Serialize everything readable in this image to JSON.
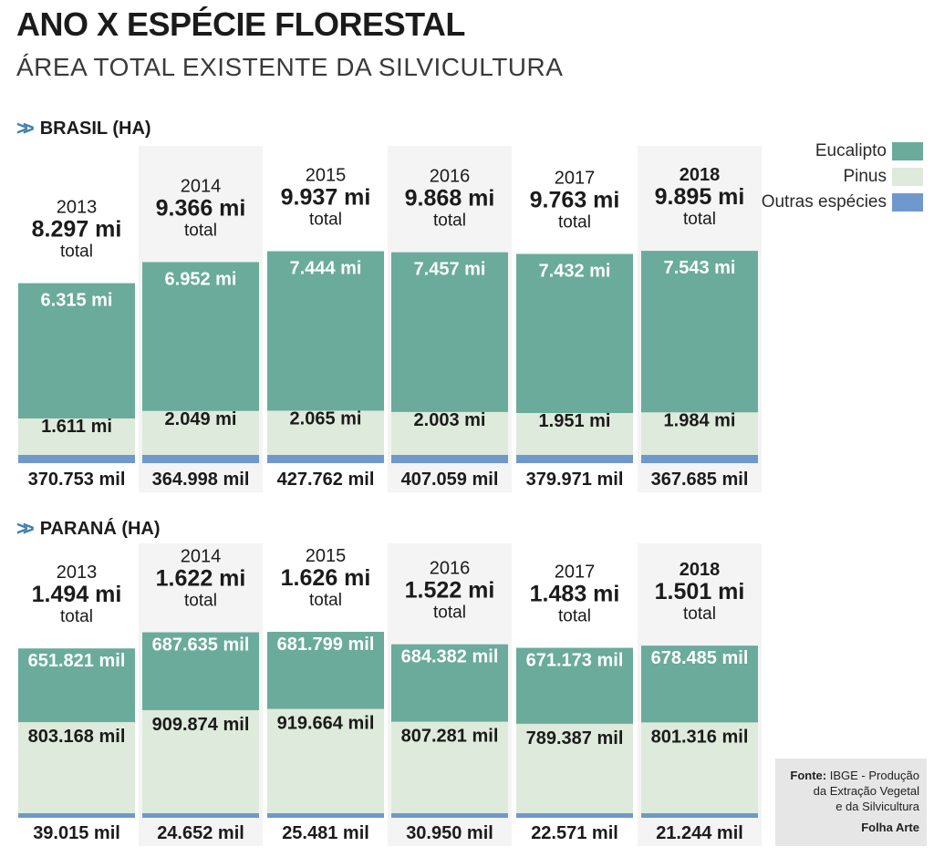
{
  "header": {
    "title": "ANO X ESPÉCIE FLORESTAL",
    "subtitle": "ÁREA TOTAL EXISTENTE DA SILVICULTURA"
  },
  "legend": {
    "eucalipto": "Eucalipto",
    "pinus": "Pinus",
    "outras": "Outras espécies"
  },
  "colors": {
    "eucalipto": "#6aab9b",
    "pinus": "#deeadb",
    "outras": "#6f98cc",
    "column_bg": "#f4f4f4",
    "chevron": "#3f7fb0"
  },
  "total_word": "total",
  "source": {
    "label": "Fonte:",
    "text_line1": "IBGE - Produção",
    "text_line2": "da Extração Vegetal",
    "text_line3": "e da Silvicultura",
    "credit": "Folha Arte"
  },
  "chart_data": [
    {
      "type": "bar",
      "stacked": true,
      "section_title": "BRASIL (HA)",
      "categories": [
        "2013",
        "2014",
        "2015",
        "2016",
        "2017",
        "2018"
      ],
      "totals": [
        8297000,
        9366000,
        9937000,
        9868000,
        9763000,
        9895000
      ],
      "total_labels": [
        "8.297 mi",
        "9.366 mi",
        "9.937 mi",
        "9.868 mi",
        "9.763 mi",
        "9.895 mi"
      ],
      "series": [
        {
          "name": "Eucalipto",
          "values": [
            6315000,
            6952000,
            7444000,
            7457000,
            7432000,
            7543000
          ],
          "labels": [
            "6.315 mi",
            "6.952 mi",
            "7.444 mi",
            "7.457 mi",
            "7.432 mi",
            "7.543 mi"
          ]
        },
        {
          "name": "Pinus",
          "values": [
            1611000,
            2049000,
            2065000,
            2003000,
            1951000,
            1984000
          ],
          "labels": [
            "1.611 mi",
            "2.049 mi",
            "2.065 mi",
            "2.003 mi",
            "1.951 mi",
            "1.984 mi"
          ]
        },
        {
          "name": "Outras espécies",
          "values": [
            370753,
            364998,
            427762,
            407059,
            379971,
            367685
          ],
          "labels": [
            "370.753 mil",
            "364.998 mil",
            "427.762 mil",
            "407.059 mil",
            "379.971 mil",
            "367.685 mil"
          ]
        }
      ]
    },
    {
      "type": "bar",
      "stacked": true,
      "section_title": "PARANÁ (HA)",
      "categories": [
        "2013",
        "2014",
        "2015",
        "2016",
        "2017",
        "2018"
      ],
      "totals": [
        1494000,
        1622000,
        1626000,
        1522000,
        1483000,
        1501000
      ],
      "total_labels": [
        "1.494 mi",
        "1.622 mi",
        "1.626 mi",
        "1.522 mi",
        "1.483 mi",
        "1.501 mi"
      ],
      "series": [
        {
          "name": "Eucalipto",
          "values": [
            651821,
            687635,
            681799,
            684382,
            671173,
            678485
          ],
          "labels": [
            "651.821 mil",
            "687.635 mil",
            "681.799 mil",
            "684.382 mil",
            "671.173 mil",
            "678.485 mil"
          ]
        },
        {
          "name": "Pinus",
          "values": [
            803168,
            909874,
            919664,
            807281,
            789387,
            801316
          ],
          "labels": [
            "803.168 mil",
            "909.874 mil",
            "919.664 mil",
            "807.281 mil",
            "789.387 mil",
            "801.316 mil"
          ]
        },
        {
          "name": "Outras espécies",
          "values": [
            39015,
            24652,
            25481,
            30950,
            22571,
            21244
          ],
          "labels": [
            "39.015 mil",
            "24.652 mil",
            "25.481 mil",
            "30.950 mil",
            "22.571 mil",
            "21.244 mil"
          ]
        }
      ]
    }
  ]
}
